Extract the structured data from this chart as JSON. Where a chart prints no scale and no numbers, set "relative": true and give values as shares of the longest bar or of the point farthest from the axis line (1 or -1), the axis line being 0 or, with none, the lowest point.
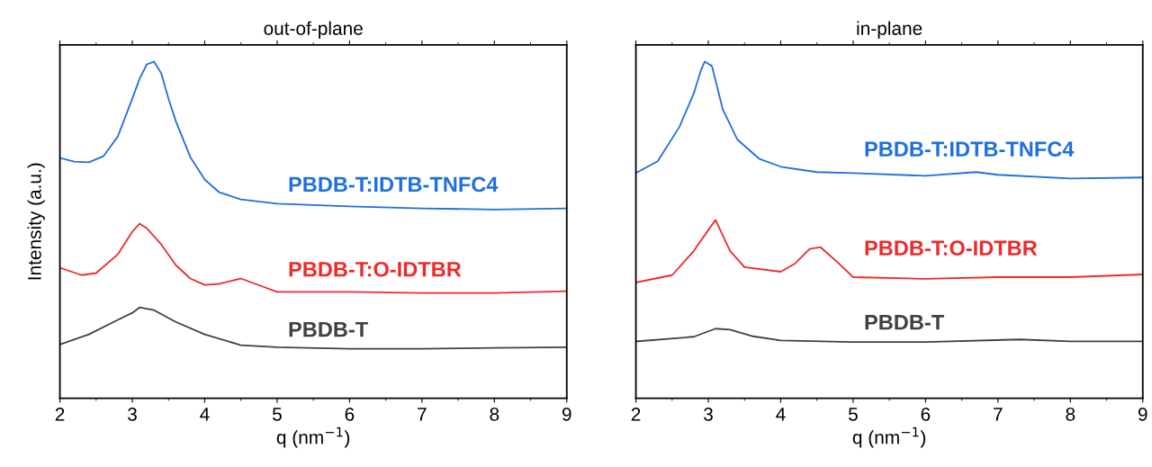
{
  "chart_data": [
    {
      "type": "line",
      "title": "out-of-plane",
      "xlabel": "q (nm$^{−1}$)",
      "ylabel": "Intensity (a.u.)",
      "relative": true,
      "xlim": [
        2,
        9
      ],
      "xticks": [
        2,
        3,
        4,
        5,
        6,
        7,
        8,
        9
      ],
      "tick_labels": "x",
      "legend": false,
      "grid": false,
      "marker": "none",
      "line_style": "solid",
      "series": [
        {
          "name": "PBDB-T:IDTB-TNFC4",
          "color": "#1f6fe0",
          "x": [
            2.0,
            2.2,
            2.4,
            2.6,
            2.8,
            3.0,
            3.1,
            3.2,
            3.3,
            3.4,
            3.5,
            3.6,
            3.8,
            4.0,
            4.2,
            4.5,
            5.0,
            6.0,
            7.0,
            8.0,
            9.0
          ],
          "values": [
            0.714,
            0.703,
            0.701,
            0.719,
            0.778,
            0.89,
            0.949,
            0.992,
            1.0,
            0.965,
            0.89,
            0.824,
            0.717,
            0.65,
            0.612,
            0.591,
            0.578,
            0.57,
            0.564,
            0.561,
            0.564
          ]
        },
        {
          "name": "PBDB-T:O-IDTBR",
          "color": "#ee2a2a",
          "x": [
            2.0,
            2.3,
            2.5,
            2.8,
            3.0,
            3.1,
            3.2,
            3.4,
            3.6,
            3.8,
            4.0,
            4.2,
            4.5,
            4.7,
            5.0,
            6.0,
            7.0,
            8.0,
            9.0
          ],
          "values": [
            0.388,
            0.366,
            0.372,
            0.428,
            0.495,
            0.519,
            0.505,
            0.457,
            0.396,
            0.356,
            0.337,
            0.34,
            0.356,
            0.34,
            0.316,
            0.316,
            0.313,
            0.313,
            0.318
          ]
        },
        {
          "name": "PBDB-T",
          "color": "#404040",
          "x": [
            2.0,
            2.4,
            2.8,
            3.0,
            3.1,
            3.3,
            3.6,
            4.0,
            4.5,
            5.0,
            6.0,
            7.0,
            8.0,
            9.0
          ],
          "values": [
            0.16,
            0.19,
            0.233,
            0.254,
            0.27,
            0.262,
            0.227,
            0.19,
            0.158,
            0.152,
            0.147,
            0.147,
            0.15,
            0.152
          ]
        }
      ]
    },
    {
      "type": "line",
      "title": "in-plane",
      "xlabel": "q (nm$^{−1}$)",
      "relative": true,
      "xlim": [
        2,
        9
      ],
      "xticks": [
        2,
        3,
        4,
        5,
        6,
        7,
        8,
        9
      ],
      "tick_labels": "x",
      "legend": false,
      "grid": false,
      "marker": "none",
      "line_style": "solid",
      "series": [
        {
          "name": "PBDB-T:IDTB-TNFC4",
          "color": "#1f6fe0",
          "x": [
            2.0,
            2.3,
            2.6,
            2.8,
            2.9,
            2.95,
            3.05,
            3.2,
            3.4,
            3.7,
            4.0,
            4.5,
            5.0,
            6.0,
            6.7,
            7.0,
            8.0,
            9.0
          ],
          "values": [
            0.669,
            0.704,
            0.806,
            0.906,
            0.976,
            1.0,
            0.987,
            0.858,
            0.769,
            0.712,
            0.688,
            0.672,
            0.669,
            0.661,
            0.672,
            0.664,
            0.653,
            0.656
          ]
        },
        {
          "name": "PBDB-T:O-IDTBR",
          "color": "#ee2a2a",
          "x": [
            2.0,
            2.5,
            2.8,
            3.0,
            3.1,
            3.3,
            3.5,
            4.0,
            4.2,
            4.4,
            4.55,
            4.8,
            5.0,
            6.0,
            7.0,
            8.0,
            9.0
          ],
          "values": [
            0.344,
            0.366,
            0.438,
            0.5,
            0.53,
            0.438,
            0.39,
            0.376,
            0.401,
            0.444,
            0.449,
            0.401,
            0.36,
            0.355,
            0.36,
            0.36,
            0.368
          ]
        },
        {
          "name": "PBDB-T",
          "color": "#404040",
          "x": [
            2.0,
            2.8,
            3.1,
            3.3,
            3.6,
            4.0,
            5.0,
            6.0,
            7.3,
            8.0,
            9.0
          ],
          "values": [
            0.169,
            0.183,
            0.207,
            0.204,
            0.185,
            0.172,
            0.167,
            0.167,
            0.175,
            0.169,
            0.169
          ]
        }
      ]
    }
  ]
}
